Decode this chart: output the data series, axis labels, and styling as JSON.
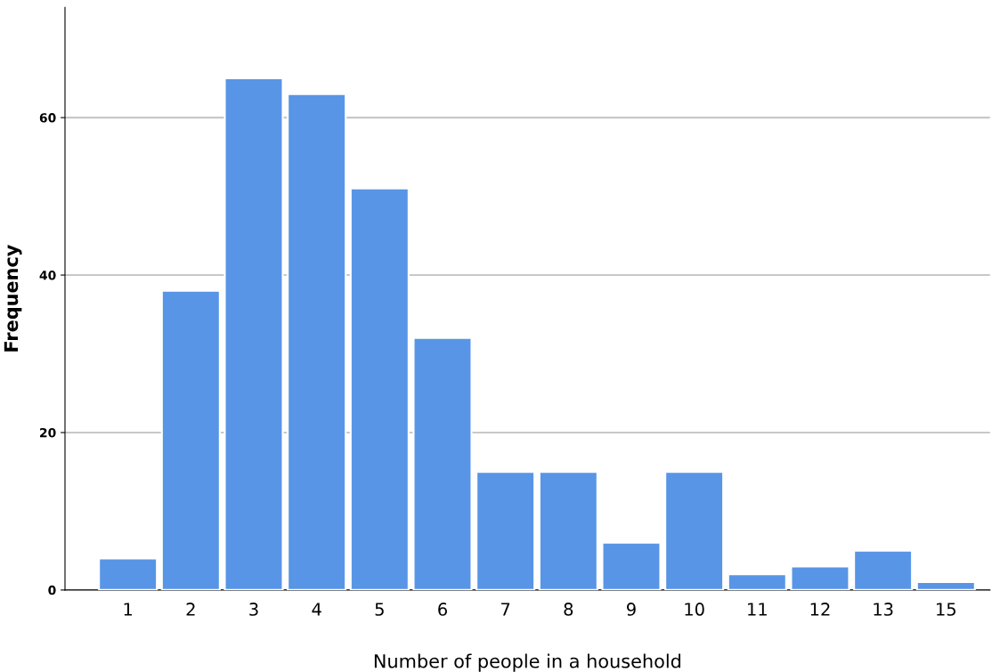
{
  "chart_data": {
    "type": "bar",
    "xlabel": "Number of people in a household",
    "ylabel": "Frequency",
    "categories": [
      "1",
      "2",
      "3",
      "4",
      "5",
      "6",
      "7",
      "8",
      "9",
      "10",
      "11",
      "12",
      "13",
      "15"
    ],
    "values": [
      4,
      38,
      65,
      63,
      51,
      32,
      15,
      15,
      6,
      15,
      2,
      3,
      5,
      1
    ],
    "color": "#5895e6",
    "ylim": [
      0,
      74
    ],
    "yticks": [
      0,
      20,
      40,
      60
    ],
    "grid": "y"
  }
}
